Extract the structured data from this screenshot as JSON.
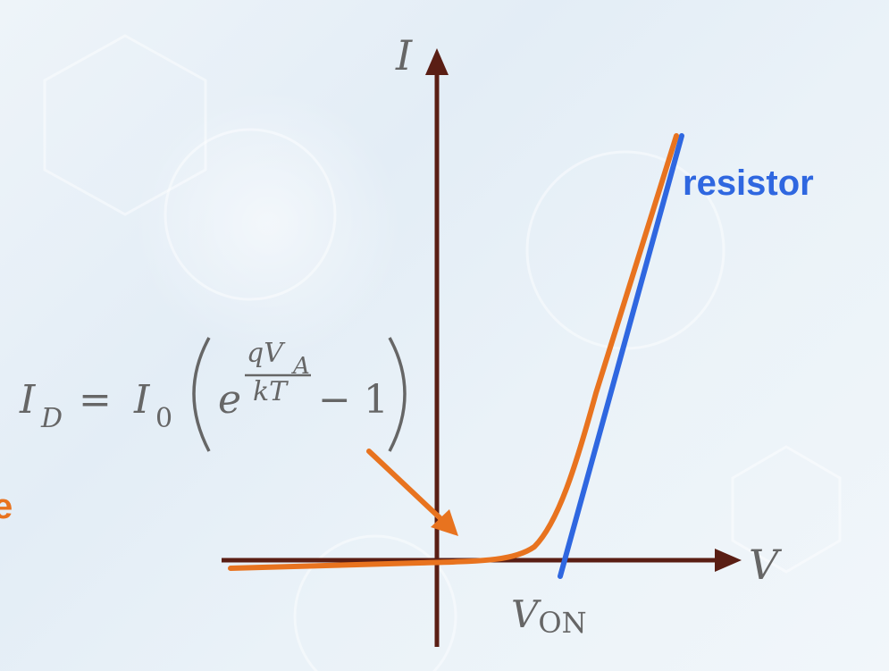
{
  "diagram": {
    "y_axis_label": "I",
    "x_axis_label": "V",
    "von_label_main": "V",
    "von_label_sub": "ON",
    "resistor_label": "resistor",
    "cropped_label": "e",
    "equation": {
      "lhs_I": "I",
      "lhs_sub": "D",
      "equals": "=",
      "rhs_I": "I",
      "rhs_sub": "0",
      "e": "e",
      "exp_num": "qV",
      "exp_num_sub": "A",
      "exp_den": "kT",
      "minus_one": "− 1"
    },
    "colors": {
      "axes": "#5a1e14",
      "diode_curve": "#e8731f",
      "resistor_line": "#2f67e0",
      "resistor_text": "#2f67e0",
      "cropped_label": "#e8731f",
      "arrow": "#e8731f",
      "equation_text": "#666666"
    }
  }
}
